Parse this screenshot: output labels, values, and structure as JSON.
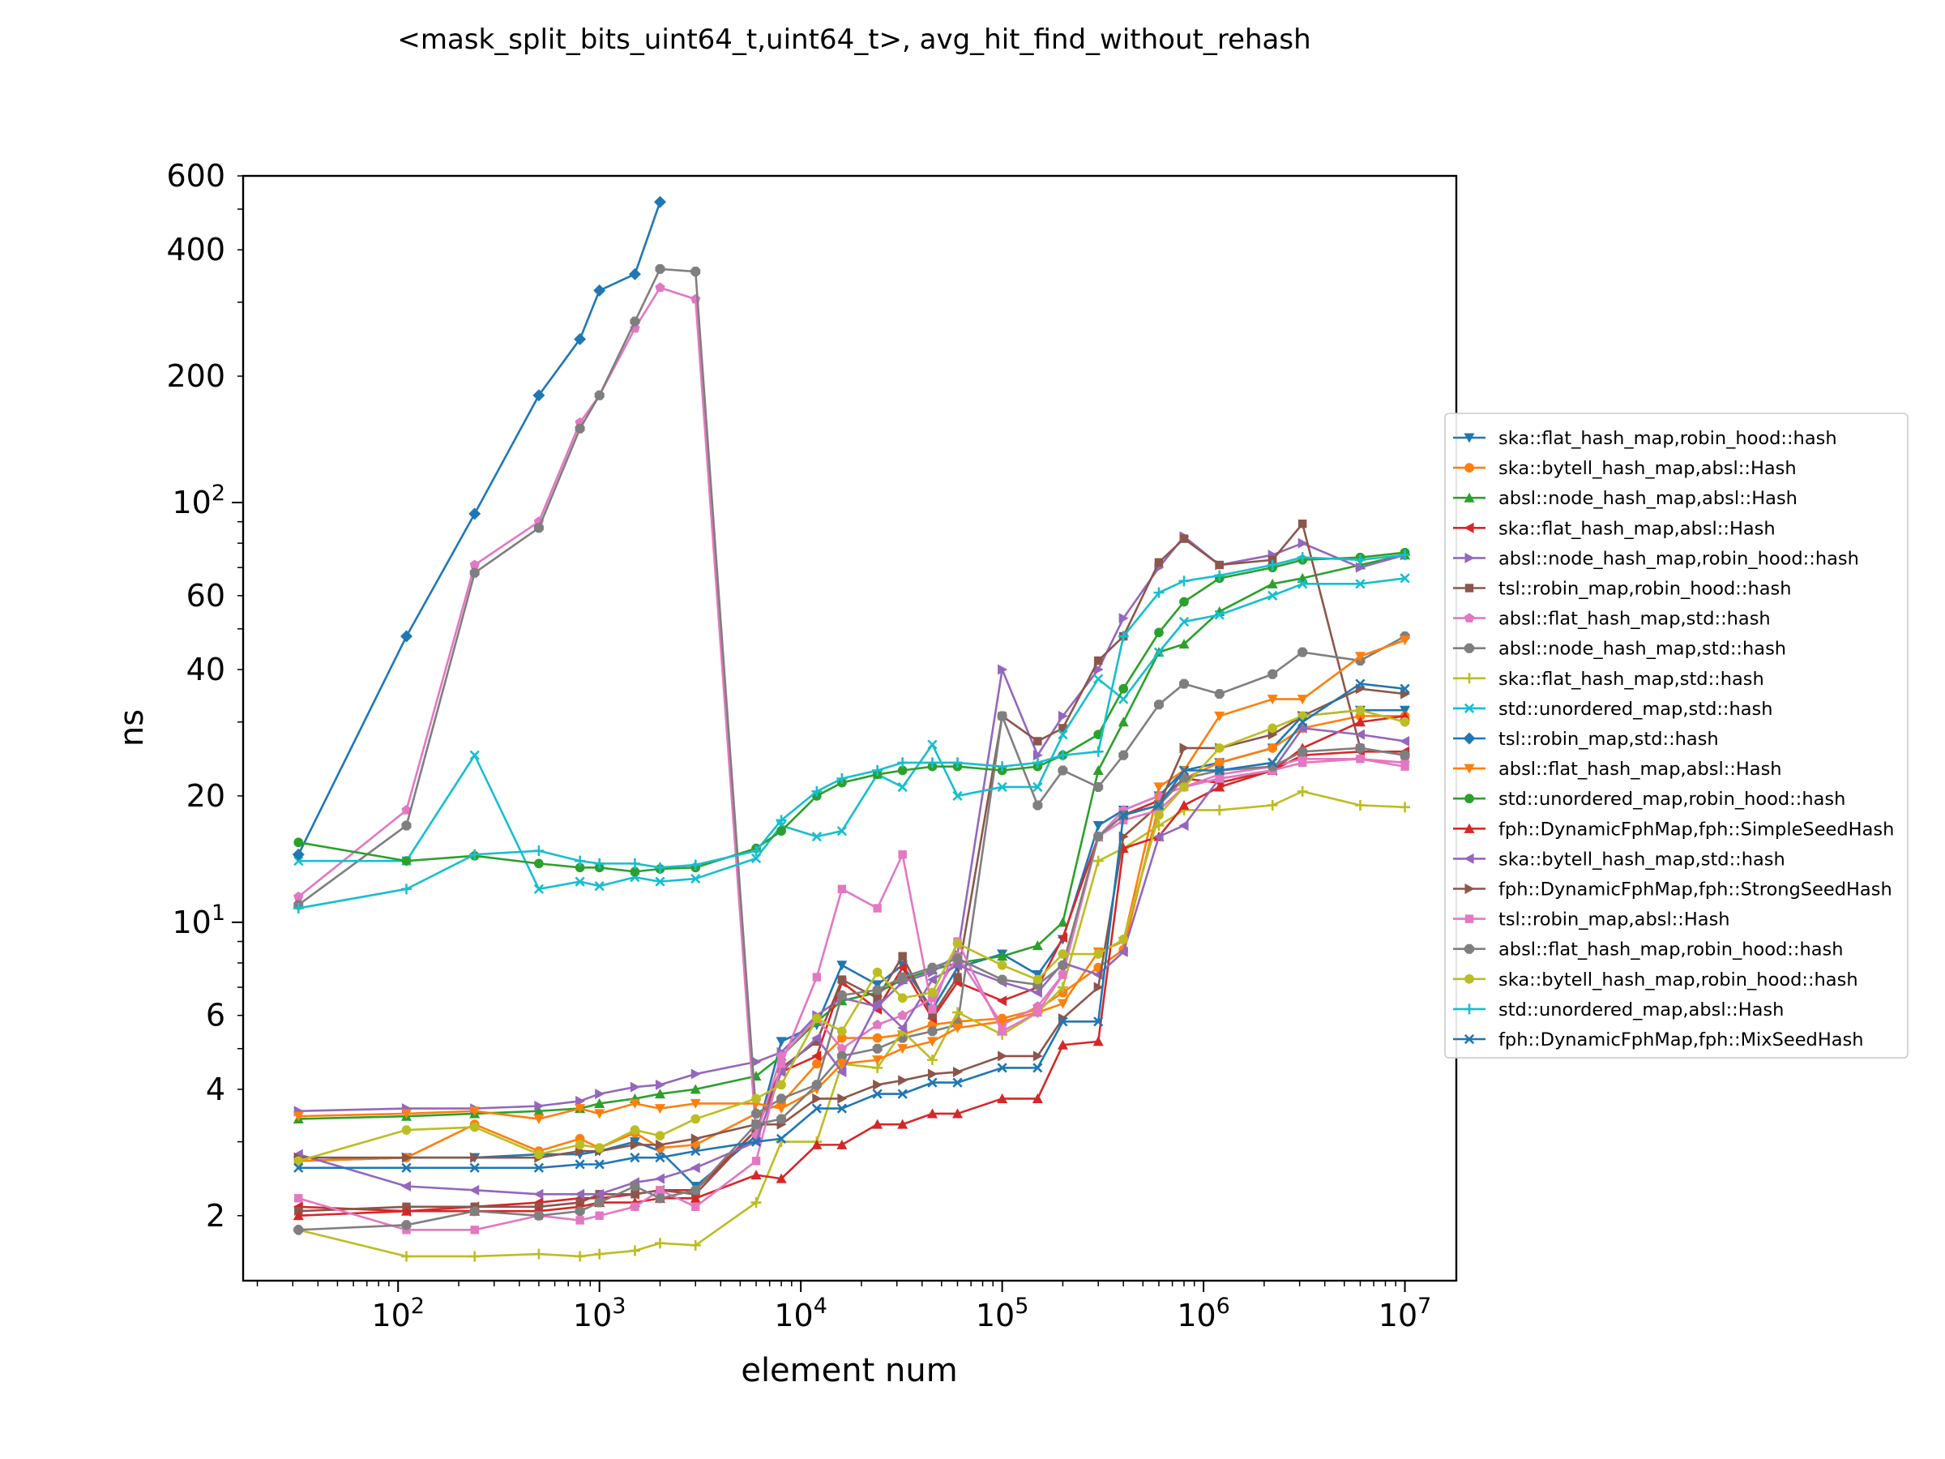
{
  "chart_data": {
    "type": "line",
    "title": "<mask_split_bits_uint64_t,uint64_t>, avg_hit_find_without_rehash",
    "xlabel": "element num",
    "ylabel": "ns",
    "xscale": "log",
    "yscale": "log",
    "xlim": [
      17,
      18000000
    ],
    "ylim": [
      1.4,
      600
    ],
    "grid": false,
    "legend_position": "right, outside plot area",
    "x": [
      32,
      110,
      240,
      500,
      800,
      1000,
      1500,
      2000,
      3000,
      6000,
      8000,
      12000,
      16000,
      24000,
      32000,
      45000,
      60000,
      100000,
      150000,
      200000,
      300000,
      400000,
      600000,
      800000,
      1200000,
      2200000,
      3100000,
      6000000,
      10000000
    ],
    "x_tick_labels": [
      {
        "base": "10",
        "exp": "2",
        "value": 100
      },
      {
        "base": "10",
        "exp": "3",
        "value": 1000
      },
      {
        "base": "10",
        "exp": "4",
        "value": 10000
      },
      {
        "base": "10",
        "exp": "5",
        "value": 100000
      },
      {
        "base": "10",
        "exp": "6",
        "value": 1000000
      },
      {
        "base": "10",
        "exp": "7",
        "value": 10000000
      }
    ],
    "y_tick_labels": [
      {
        "text": "2",
        "value": 2
      },
      {
        "text": "4",
        "value": 4
      },
      {
        "text": "6",
        "value": 6
      },
      {
        "base": "10",
        "exp": "1",
        "value": 10
      },
      {
        "text": "20",
        "value": 20
      },
      {
        "text": "40",
        "value": 40
      },
      {
        "text": "60",
        "value": 60
      },
      {
        "base": "10",
        "exp": "2",
        "value": 100
      },
      {
        "text": "200",
        "value": 200
      },
      {
        "text": "400",
        "value": 400
      },
      {
        "text": "600",
        "value": 600
      }
    ],
    "series": [
      {
        "name": "ska::flat_hash_map,robin_hood::hash",
        "color": "#1f77b4",
        "marker": "tri_down",
        "values": [
          2.7,
          2.75,
          2.75,
          2.8,
          2.8,
          2.85,
          3.0,
          2.85,
          2.35,
          3.1,
          5.2,
          5.7,
          7.9,
          7.1,
          7.9,
          6.2,
          7.8,
          8.4,
          7.5,
          9.1,
          17.0,
          18.5,
          20.0,
          23.0,
          24.0,
          26.0,
          31.0,
          32.0,
          32.0
        ]
      },
      {
        "name": "ska::bytell_hash_map,absl::Hash",
        "color": "#ff7f0e",
        "marker": "circle",
        "values": [
          2.7,
          2.75,
          3.3,
          2.85,
          3.05,
          2.9,
          3.15,
          2.9,
          2.95,
          3.5,
          3.7,
          4.6,
          5.3,
          5.3,
          5.4,
          5.7,
          5.8,
          5.9,
          6.2,
          6.8,
          7.8,
          8.6,
          19.0,
          22.0,
          24.0,
          26.0,
          29.0,
          31.0,
          31.0
        ]
      },
      {
        "name": "absl::node_hash_map,absl::Hash",
        "color": "#2ca02c",
        "marker": "tri_up",
        "values": [
          3.4,
          3.45,
          3.5,
          3.55,
          3.6,
          3.7,
          3.8,
          3.9,
          4.0,
          4.3,
          4.8,
          5.8,
          6.5,
          6.8,
          7.3,
          7.7,
          8.0,
          8.3,
          8.8,
          10.0,
          23.0,
          30.0,
          44.0,
          46.0,
          55.0,
          64.0,
          66.0,
          71.0,
          75.0
        ]
      },
      {
        "name": "ska::flat_hash_map,absl::Hash",
        "color": "#d62728",
        "marker": "tri_left",
        "values": [
          2.1,
          2.05,
          2.1,
          2.15,
          2.2,
          2.2,
          2.25,
          2.3,
          2.3,
          3.2,
          4.4,
          4.8,
          7.2,
          6.2,
          7.8,
          5.9,
          7.2,
          6.5,
          7.0,
          9.2,
          16.0,
          18.0,
          19.5,
          22.0,
          21.5,
          23.0,
          25.0,
          25.5,
          25.5
        ]
      },
      {
        "name": "absl::node_hash_map,robin_hood::hash",
        "color": "#9467bd",
        "marker": "tri_right",
        "values": [
          3.55,
          3.6,
          3.6,
          3.65,
          3.75,
          3.9,
          4.05,
          4.1,
          4.35,
          4.65,
          4.9,
          6.0,
          6.6,
          6.3,
          7.2,
          7.6,
          8.4,
          40.0,
          25.0,
          31.0,
          40.0,
          53.0,
          70.0,
          83.0,
          71.0,
          75.0,
          80.0,
          70.0,
          75.0
        ]
      },
      {
        "name": "tsl::robin_map,robin_hood::hash",
        "color": "#8c564b",
        "marker": "square",
        "values": [
          2.05,
          2.1,
          2.1,
          2.1,
          2.15,
          2.25,
          2.25,
          2.3,
          2.25,
          3.2,
          4.5,
          5.2,
          7.3,
          6.6,
          8.3,
          6.0,
          7.4,
          31.0,
          27.0,
          29.0,
          42.0,
          48.0,
          72.0,
          82.0,
          71.0,
          73.0,
          89.0,
          26.0,
          25.0
        ]
      },
      {
        "name": "absl::flat_hash_map,std::hash",
        "color": "#e377c2",
        "marker": "pentagon",
        "values": [
          11.5,
          18.5,
          71.0,
          90.0,
          155.0,
          180.0,
          260.0,
          325.0,
          305.0,
          3.1,
          4.8,
          5.9,
          5.0,
          5.7,
          6.0,
          6.6,
          8.3,
          5.7,
          6.3,
          7.5,
          16.0,
          18.5,
          20.0,
          21.0,
          22.5,
          23.5,
          24.5,
          24.5,
          24.0
        ]
      },
      {
        "name": "absl::node_hash_map,std::hash",
        "color": "#7f7f7f",
        "marker": "octagon",
        "values": [
          11.0,
          17.0,
          68.0,
          87.0,
          150.0,
          180.0,
          270.0,
          360.0,
          355.0,
          3.5,
          3.8,
          4.1,
          4.8,
          5.0,
          5.3,
          5.5,
          5.7,
          31.0,
          19.0,
          23.0,
          21.0,
          25.0,
          33.0,
          37.0,
          35.0,
          39.0,
          44.0,
          42.0,
          48.0
        ]
      },
      {
        "name": "ska::flat_hash_map,std::hash",
        "color": "#bcbd22",
        "marker": "plus",
        "values": [
          1.85,
          1.6,
          1.6,
          1.62,
          1.6,
          1.62,
          1.65,
          1.72,
          1.7,
          2.15,
          3.0,
          3.0,
          4.6,
          4.5,
          5.5,
          4.7,
          6.1,
          5.4,
          6.1,
          7.0,
          14.0,
          15.0,
          17.0,
          18.5,
          18.5,
          19.0,
          20.5,
          19.0,
          18.8
        ]
      },
      {
        "name": "std::unordered_map,std::hash",
        "color": "#17becf",
        "marker": "x",
        "values": [
          14.0,
          14.0,
          25.0,
          12.0,
          12.5,
          12.2,
          12.8,
          12.5,
          12.7,
          14.2,
          17.0,
          16.0,
          16.5,
          22.5,
          21.0,
          26.5,
          20.0,
          21.0,
          21.0,
          28.0,
          38.0,
          34.0,
          44.0,
          52.0,
          54.0,
          60.0,
          64.0,
          64.0,
          66.0
        ]
      },
      {
        "name": "tsl::robin_map,std::hash",
        "color": "#1f77b4",
        "marker": "diamond",
        "values": [
          14.5,
          48.0,
          94.0,
          180.0,
          245.0,
          320.0,
          350.0,
          520.0,
          null,
          null,
          null,
          null,
          null,
          null,
          null,
          null,
          null,
          null,
          null,
          null,
          null,
          null,
          null,
          null,
          null,
          null,
          null,
          null,
          null
        ]
      },
      {
        "name": "absl::flat_hash_map,absl::Hash",
        "color": "#ff7f0e",
        "marker": "tri_down",
        "values": [
          3.45,
          3.5,
          3.55,
          3.4,
          3.6,
          3.5,
          3.7,
          3.6,
          3.7,
          3.7,
          3.6,
          4.0,
          4.6,
          4.7,
          5.0,
          5.2,
          5.6,
          5.8,
          6.1,
          6.4,
          8.5,
          9.0,
          21.0,
          23.0,
          31.0,
          34.0,
          34.0,
          43.0,
          47.0
        ]
      },
      {
        "name": "std::unordered_map,robin_hood::hash",
        "color": "#2ca02c",
        "marker": "circle",
        "values": [
          15.5,
          14.0,
          14.4,
          13.8,
          13.5,
          13.5,
          13.2,
          13.4,
          13.5,
          15.0,
          16.5,
          20.0,
          21.5,
          22.5,
          23.0,
          23.5,
          23.5,
          23.0,
          23.5,
          25.0,
          28.0,
          36.0,
          49.0,
          58.0,
          66.0,
          70.0,
          73.0,
          74.0,
          76.0
        ]
      },
      {
        "name": "fph::DynamicFphMap,fph::SimpleSeedHash",
        "color": "#d62728",
        "marker": "tri_up",
        "values": [
          2.0,
          2.05,
          2.05,
          2.05,
          2.1,
          2.15,
          2.15,
          2.2,
          2.2,
          2.5,
          2.45,
          2.95,
          2.95,
          3.3,
          3.3,
          3.5,
          3.5,
          3.8,
          3.8,
          5.1,
          5.2,
          15.0,
          16.0,
          19.0,
          21.0,
          23.0,
          26.0,
          30.0,
          31.0
        ]
      },
      {
        "name": "ska::bytell_hash_map,std::hash",
        "color": "#9467bd",
        "marker": "tri_left",
        "values": [
          2.8,
          2.35,
          2.3,
          2.25,
          2.25,
          2.25,
          2.4,
          2.45,
          2.6,
          3.0,
          4.4,
          5.3,
          4.4,
          6.4,
          5.6,
          7.3,
          7.9,
          7.2,
          6.8,
          8.0,
          7.5,
          8.5,
          16.0,
          17.0,
          22.0,
          23.0,
          29.0,
          28.0,
          27.0
        ]
      },
      {
        "name": "fph::DynamicFphMap,fph::StrongSeedHash",
        "color": "#8c564b",
        "marker": "tri_right",
        "values": [
          2.75,
          2.75,
          2.75,
          2.75,
          2.85,
          2.85,
          2.95,
          2.95,
          3.05,
          3.3,
          3.3,
          3.8,
          3.8,
          4.1,
          4.2,
          4.35,
          4.4,
          4.8,
          4.8,
          5.9,
          7.0,
          16.0,
          19.0,
          26.0,
          26.0,
          28.0,
          31.0,
          36.0,
          35.0
        ]
      },
      {
        "name": "tsl::robin_map,absl::Hash",
        "color": "#e377c2",
        "marker": "square",
        "values": [
          2.2,
          1.85,
          1.85,
          2.0,
          1.95,
          2.0,
          2.1,
          2.3,
          2.1,
          2.7,
          4.6,
          7.4,
          12.0,
          10.8,
          14.5,
          6.2,
          9.0,
          5.5,
          6.1,
          7.5,
          16.0,
          17.5,
          18.5,
          21.0,
          22.0,
          23.0,
          24.0,
          24.5,
          23.5
        ]
      },
      {
        "name": "absl::flat_hash_map,robin_hood::hash",
        "color": "#7f7f7f",
        "marker": "octagon",
        "values": [
          1.85,
          1.9,
          2.05,
          2.0,
          2.05,
          2.15,
          2.35,
          2.2,
          2.3,
          3.3,
          3.4,
          4.1,
          6.7,
          6.9,
          7.4,
          7.8,
          8.2,
          7.3,
          7.1,
          7.9,
          16.0,
          18.0,
          19.0,
          22.0,
          23.0,
          23.5,
          25.5,
          26.0,
          25.0
        ]
      },
      {
        "name": "ska::bytell_hash_map,robin_hood::hash",
        "color": "#bcbd22",
        "marker": "circle",
        "values": [
          2.7,
          3.2,
          3.25,
          2.8,
          2.95,
          2.9,
          3.2,
          3.1,
          3.4,
          3.8,
          4.1,
          5.9,
          5.5,
          7.6,
          6.6,
          6.8,
          8.9,
          7.9,
          7.3,
          8.4,
          8.4,
          9.1,
          18.0,
          21.0,
          26.0,
          29.0,
          31.0,
          32.0,
          30.0
        ]
      },
      {
        "name": "std::unordered_map,absl::Hash",
        "color": "#17becf",
        "marker": "plus",
        "values": [
          10.8,
          12.0,
          14.5,
          14.8,
          14.0,
          13.8,
          13.8,
          13.5,
          13.7,
          14.8,
          17.5,
          20.5,
          22.0,
          23.0,
          24.0,
          24.0,
          24.0,
          23.5,
          24.0,
          25.0,
          25.5,
          48.0,
          61.0,
          65.0,
          67.0,
          71.0,
          74.0,
          73.0,
          75.0
        ]
      },
      {
        "name": "fph::DynamicFphMap,fph::MixSeedHash",
        "color": "#1f77b4",
        "marker": "x",
        "values": [
          2.6,
          2.6,
          2.6,
          2.6,
          2.65,
          2.65,
          2.75,
          2.75,
          2.85,
          3.0,
          3.05,
          3.6,
          3.6,
          3.9,
          3.9,
          4.15,
          4.15,
          4.5,
          4.5,
          5.8,
          5.8,
          18.0,
          19.0,
          23.0,
          23.0,
          24.0,
          30.0,
          37.0,
          36.0
        ]
      }
    ]
  }
}
